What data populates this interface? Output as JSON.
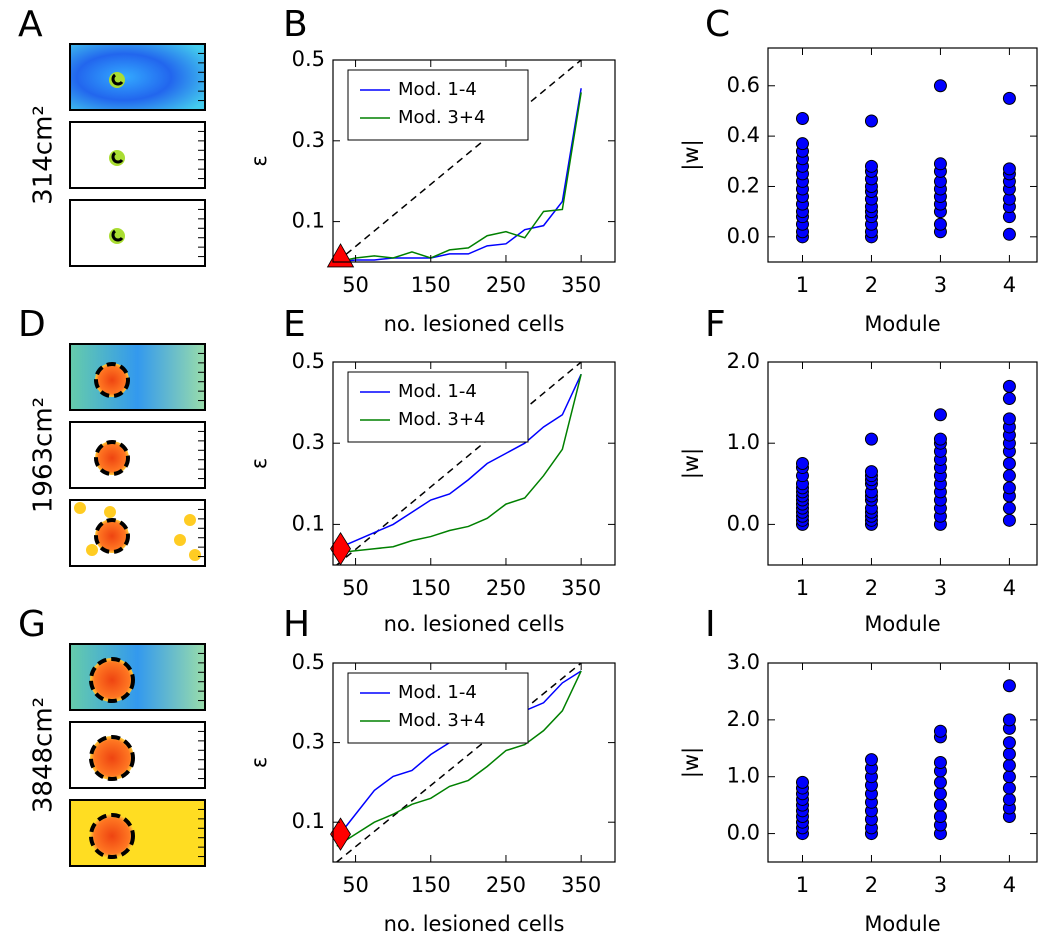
{
  "chart_data": [
    {
      "type": "image",
      "panel": "A",
      "label": "314cm²",
      "style": "small"
    },
    {
      "type": "line",
      "panel": "B",
      "xlabel": "no. lesioned cells",
      "ylabel": "ε",
      "x": [
        25,
        50,
        75,
        100,
        125,
        150,
        175,
        200,
        225,
        250,
        275,
        300,
        325,
        350
      ],
      "series": [
        {
          "name": "Mod. 1-4",
          "color": "#0000ff",
          "values": [
            0,
            0.005,
            0.005,
            0.01,
            0.01,
            0.01,
            0.02,
            0.02,
            0.04,
            0.045,
            0.08,
            0.09,
            0.15,
            0.43
          ]
        },
        {
          "name": "Mod. 3+4",
          "color": "#008000",
          "values": [
            0,
            0.01,
            0.015,
            0.01,
            0.025,
            0.01,
            0.03,
            0.035,
            0.065,
            0.075,
            0.06,
            0.125,
            0.13,
            0.42
          ]
        }
      ],
      "reference": {
        "x": [
          25,
          350
        ],
        "values": [
          0,
          0.5
        ]
      },
      "marker": {
        "x": 30,
        "y": 0.01,
        "shape": "triangle",
        "color": "#ff0000"
      },
      "xlim": [
        20,
        395
      ],
      "ylim": [
        0,
        0.5
      ],
      "xticks": [
        50,
        150,
        250,
        350
      ],
      "yticks": [
        0.1,
        0.3,
        0.5
      ],
      "legend": "upper left"
    },
    {
      "type": "strip",
      "panel": "C",
      "xlabel": "Module",
      "ylabel": "|w|",
      "color": "#0000ff",
      "categories": [
        1,
        2,
        3,
        4
      ],
      "values": [
        [
          0,
          0.02,
          0.05,
          0.08,
          0.1,
          0.13,
          0.16,
          0.19,
          0.22,
          0.25,
          0.28,
          0.31,
          0.34,
          0.37,
          0.47
        ],
        [
          0,
          0.02,
          0.05,
          0.08,
          0.1,
          0.12,
          0.15,
          0.18,
          0.2,
          0.23,
          0.26,
          0.28,
          0.46
        ],
        [
          0.02,
          0.05,
          0.1,
          0.13,
          0.16,
          0.19,
          0.22,
          0.26,
          0.29,
          0.6
        ],
        [
          0.01,
          0.08,
          0.12,
          0.15,
          0.19,
          0.22,
          0.25,
          0.27,
          0.55
        ]
      ],
      "xlim": [
        0.5,
        4.4
      ],
      "ylim": [
        -0.1,
        0.75
      ],
      "yticks": [
        {
          "value": 0,
          "label": "0.0"
        },
        0.2,
        0.4,
        0.6
      ]
    },
    {
      "type": "image",
      "panel": "D",
      "label": "1963cm²",
      "style": "medium"
    },
    {
      "type": "line",
      "panel": "E",
      "xlabel": "no. lesioned cells",
      "ylabel": "ε",
      "x": [
        25,
        50,
        75,
        100,
        125,
        150,
        175,
        200,
        225,
        250,
        275,
        300,
        325,
        350
      ],
      "series": [
        {
          "name": "Mod. 1-4",
          "color": "#0000ff",
          "values": [
            0.04,
            0.06,
            0.08,
            0.1,
            0.13,
            0.16,
            0.175,
            0.21,
            0.25,
            0.275,
            0.3,
            0.34,
            0.37,
            0.47
          ]
        },
        {
          "name": "Mod. 3+4",
          "color": "#008000",
          "values": [
            0.03,
            0.035,
            0.04,
            0.045,
            0.06,
            0.07,
            0.085,
            0.095,
            0.115,
            0.15,
            0.165,
            0.22,
            0.285,
            0.47
          ]
        }
      ],
      "reference": {
        "x": [
          25,
          350
        ],
        "values": [
          0,
          0.5
        ]
      },
      "marker": {
        "x": 30,
        "y": 0.04,
        "shape": "diamond",
        "color": "#ff0000"
      },
      "xlim": [
        20,
        395
      ],
      "ylim": [
        0,
        0.5
      ],
      "xticks": [
        50,
        150,
        250,
        350
      ],
      "yticks": [
        0.1,
        0.3,
        0.5
      ],
      "legend": "upper left"
    },
    {
      "type": "strip",
      "panel": "F",
      "xlabel": "Module",
      "ylabel": "|w|",
      "color": "#0000ff",
      "categories": [
        1,
        2,
        3,
        4
      ],
      "values": [
        [
          0,
          0.05,
          0.1,
          0.15,
          0.2,
          0.25,
          0.3,
          0.35,
          0.4,
          0.45,
          0.5,
          0.6,
          0.7,
          0.75
        ],
        [
          0,
          0.05,
          0.1,
          0.15,
          0.2,
          0.3,
          0.35,
          0.4,
          0.5,
          0.55,
          0.6,
          0.65,
          1.05
        ],
        [
          0,
          0.1,
          0.2,
          0.3,
          0.4,
          0.5,
          0.6,
          0.7,
          0.8,
          0.9,
          1.0,
          1.05,
          1.35
        ],
        [
          0.05,
          0.2,
          0.35,
          0.45,
          0.6,
          0.75,
          0.9,
          1.0,
          1.1,
          1.2,
          1.3,
          1.55,
          1.7
        ]
      ],
      "xlim": [
        0.5,
        4.4
      ],
      "ylim": [
        -0.5,
        2.0
      ],
      "yticks": [
        {
          "value": 0,
          "label": "0.0"
        },
        {
          "value": 1,
          "label": "1.0"
        },
        {
          "value": 2,
          "label": "2.0"
        }
      ]
    },
    {
      "type": "image",
      "panel": "G",
      "label": "3848cm²",
      "style": "large"
    },
    {
      "type": "line",
      "panel": "H",
      "xlabel": "no. lesioned cells",
      "ylabel": "ε",
      "x": [
        25,
        50,
        75,
        100,
        125,
        150,
        175,
        200,
        225,
        250,
        275,
        300,
        325,
        350
      ],
      "series": [
        {
          "name": "Mod. 1-4",
          "color": "#0000ff",
          "values": [
            0.06,
            0.12,
            0.18,
            0.215,
            0.23,
            0.27,
            0.3,
            0.33,
            0.35,
            0.37,
            0.38,
            0.4,
            0.45,
            0.48
          ]
        },
        {
          "name": "Mod. 3+4",
          "color": "#008000",
          "values": [
            0.04,
            0.07,
            0.1,
            0.12,
            0.145,
            0.16,
            0.19,
            0.205,
            0.24,
            0.28,
            0.295,
            0.33,
            0.38,
            0.48
          ]
        }
      ],
      "reference": {
        "x": [
          25,
          350
        ],
        "values": [
          0,
          0.5
        ]
      },
      "marker": {
        "x": 30,
        "y": 0.07,
        "shape": "diamond",
        "color": "#ff0000"
      },
      "xlim": [
        20,
        395
      ],
      "ylim": [
        0,
        0.5
      ],
      "xticks": [
        50,
        150,
        250,
        350
      ],
      "yticks": [
        0.1,
        0.3,
        0.5
      ],
      "legend": "upper left"
    },
    {
      "type": "strip",
      "panel": "I",
      "xlabel": "Module",
      "ylabel": "|w|",
      "color": "#0000ff",
      "categories": [
        1,
        2,
        3,
        4
      ],
      "values": [
        [
          0,
          0.1,
          0.2,
          0.3,
          0.4,
          0.5,
          0.6,
          0.7,
          0.8,
          0.9
        ],
        [
          0,
          0.1,
          0.25,
          0.4,
          0.55,
          0.7,
          0.85,
          1.0,
          1.15,
          1.3
        ],
        [
          0,
          0.15,
          0.3,
          0.5,
          0.7,
          0.9,
          1.1,
          1.25,
          1.7,
          1.8
        ],
        [
          0.3,
          0.45,
          0.6,
          0.8,
          1.0,
          1.2,
          1.4,
          1.6,
          1.85,
          2.0,
          2.6
        ]
      ],
      "xlim": [
        0.5,
        4.4
      ],
      "ylim": [
        -0.5,
        3.0
      ],
      "yticks": [
        {
          "value": 0,
          "label": "0.0"
        },
        {
          "value": 1,
          "label": "1.0"
        },
        {
          "value": 2,
          "label": "2.0"
        },
        {
          "value": 3,
          "label": "3.0"
        }
      ]
    }
  ]
}
